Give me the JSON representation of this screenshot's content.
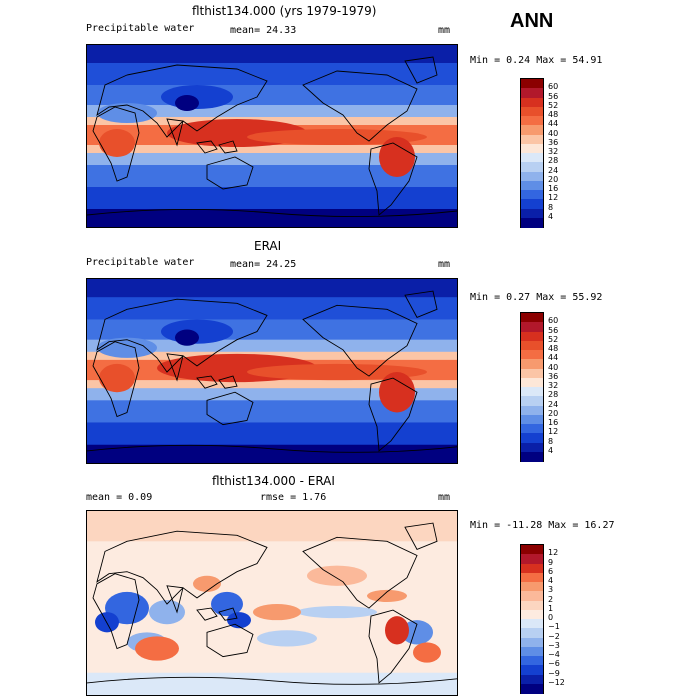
{
  "season": "ANN",
  "panels": [
    {
      "id": "model",
      "title": "flthist134.000 (yrs 1979-1979)",
      "left_label": "Precipitable water",
      "center_label": "mean=  24.33",
      "units": "mm",
      "minmax": "Min =   0.24 Max =  54.91",
      "colorbar": {
        "labels": [
          "60",
          "56",
          "52",
          "48",
          "44",
          "40",
          "36",
          "32",
          "28",
          "24",
          "20",
          "16",
          "12",
          "8",
          "4"
        ],
        "colors": [
          "#8b0000",
          "#b2182b",
          "#d7301f",
          "#e8502b",
          "#f46d43",
          "#f79a6e",
          "#fbc5a6",
          "#fde7d8",
          "#dbe8f8",
          "#b8d0f2",
          "#8fb2ec",
          "#5f8ee6",
          "#3366e0",
          "#1440d0",
          "#0a1fa8",
          "#000080"
        ]
      }
    },
    {
      "id": "obs",
      "title": "ERAI",
      "left_label": "Precipitable water",
      "center_label": "mean=  24.25",
      "units": "mm",
      "minmax": "Min =   0.27 Max =  55.92",
      "colorbar": {
        "labels": [
          "60",
          "56",
          "52",
          "48",
          "44",
          "40",
          "36",
          "32",
          "28",
          "24",
          "20",
          "16",
          "12",
          "8",
          "4"
        ],
        "colors": [
          "#8b0000",
          "#b2182b",
          "#d7301f",
          "#e8502b",
          "#f46d43",
          "#f79a6e",
          "#fbc5a6",
          "#fde7d8",
          "#dbe8f8",
          "#b8d0f2",
          "#8fb2ec",
          "#5f8ee6",
          "#3366e0",
          "#1440d0",
          "#0a1fa8",
          "#000080"
        ]
      }
    },
    {
      "id": "diff",
      "title": "flthist134.000 - ERAI",
      "left_label": "mean =    0.09",
      "center_label": "rmse =    1.76",
      "units": "mm",
      "minmax": "Min = -11.28 Max =  16.27",
      "colorbar": {
        "labels": [
          "12",
          "9",
          "6",
          "4",
          "3",
          "2",
          "1",
          "0",
          "−1",
          "−2",
          "−3",
          "−4",
          "−6",
          "−9",
          "−12"
        ],
        "colors": [
          "#8b0000",
          "#b2182b",
          "#d7301f",
          "#f46d43",
          "#f79a6e",
          "#fbb99a",
          "#fcd6c0",
          "#fdebe0",
          "#dbe8f8",
          "#b8d0f2",
          "#8fb2ec",
          "#5f8ee6",
          "#3366e0",
          "#1440d0",
          "#0a1fa8",
          "#000080"
        ]
      }
    }
  ]
}
